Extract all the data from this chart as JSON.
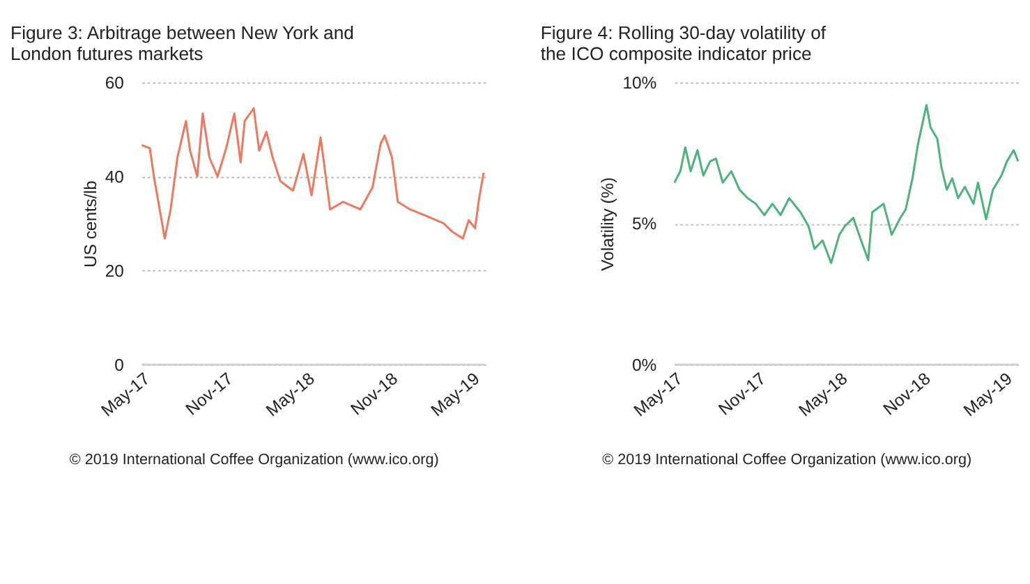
{
  "chart_data": [
    {
      "type": "line",
      "title": "Figure 3:    Arbitrage between New York and London futures markets",
      "ylabel": "US cents/lb",
      "annotations": [
        "© 2019 International Coffee Organization (www.ico.org)"
      ],
      "x": [
        "2017-05-01",
        "2017-05-19",
        "2017-05-28",
        "2017-06-21",
        "2017-07-04",
        "2017-07-19",
        "2017-08-07",
        "2017-08-16",
        "2017-09-01",
        "2017-09-13",
        "2017-09-28",
        "2017-10-16",
        "2017-11-04",
        "2017-11-22",
        "2017-12-06",
        "2017-12-15",
        "2018-01-04",
        "2018-01-16",
        "2018-02-01",
        "2018-02-15",
        "2018-03-04",
        "2018-04-01",
        "2018-04-24",
        "2018-05-12",
        "2018-06-01",
        "2018-06-22",
        "2018-07-21",
        "2018-08-28",
        "2018-09-24",
        "2018-10-12",
        "2018-10-21",
        "2018-11-06",
        "2018-11-19",
        "2018-12-16",
        "2019-01-24",
        "2019-03-01",
        "2019-03-19",
        "2019-04-12",
        "2019-04-25",
        "2019-05-09",
        "2019-05-18",
        "2019-05-28"
      ],
      "series": [
        {
          "color": "#f07860",
          "values": [
            46.7,
            46,
            40,
            26.8,
            33,
            44,
            51.8,
            45.5,
            40,
            53.4,
            44,
            40,
            46,
            53.4,
            43,
            51.8,
            54.5,
            45.5,
            49.5,
            44,
            39,
            37,
            44.8,
            36,
            48.3,
            33,
            34.6,
            33,
            37.7,
            47,
            48.7,
            44,
            34.6,
            33,
            31.5,
            30,
            28.3,
            26.8,
            30.7,
            29,
            35.4,
            40.8
          ]
        }
      ],
      "xlim": [
        "2017-05-01",
        "2019-06-01"
      ],
      "xticks": [
        {
          "value": "2017-05-01",
          "label": "May-17"
        },
        {
          "value": "2017-11-01",
          "label": "Nov-17"
        },
        {
          "value": "2018-05-01",
          "label": "May-18"
        },
        {
          "value": "2018-11-01",
          "label": "Nov-18"
        },
        {
          "value": "2019-05-01",
          "label": "May-19"
        }
      ],
      "ylim": [
        0,
        60
      ],
      "yticks": [
        0,
        20,
        40,
        60
      ],
      "grid": "y",
      "marker": "none",
      "line_style": "solid"
    },
    {
      "type": "line",
      "title": "Figure 4:    Rolling 30-day volatility of the ICO composite indicator price",
      "ylabel": "Volatility (%)",
      "annotations": [
        "© 2019 International Coffee Organization (www.ico.org)"
      ],
      "x": [
        "2017-05-01",
        "2017-05-14",
        "2017-05-25",
        "2017-06-06",
        "2017-06-21",
        "2017-07-04",
        "2017-07-19",
        "2017-08-01",
        "2017-08-16",
        "2017-09-04",
        "2017-09-22",
        "2017-10-10",
        "2017-10-28",
        "2017-11-16",
        "2017-12-04",
        "2017-12-22",
        "2018-01-10",
        "2018-02-04",
        "2018-02-22",
        "2018-03-07",
        "2018-03-25",
        "2018-04-13",
        "2018-05-01",
        "2018-05-13",
        "2018-06-01",
        "2018-06-16",
        "2018-07-04",
        "2018-07-13",
        "2018-08-07",
        "2018-08-25",
        "2018-09-13",
        "2018-09-25",
        "2018-10-10",
        "2018-10-22",
        "2018-11-10",
        "2018-11-19",
        "2018-12-04",
        "2018-12-13",
        "2018-12-25",
        "2019-01-06",
        "2019-01-19",
        "2019-02-03",
        "2019-02-22",
        "2019-03-04",
        "2019-03-22",
        "2019-04-06",
        "2019-04-25",
        "2019-05-07",
        "2019-05-22",
        "2019-06-01"
      ],
      "series": [
        {
          "color": "#4db37e",
          "values": [
            6.45,
            6.85,
            7.7,
            6.85,
            7.6,
            6.7,
            7.2,
            7.3,
            6.45,
            6.85,
            6.2,
            5.9,
            5.7,
            5.3,
            5.7,
            5.3,
            5.9,
            5.4,
            4.9,
            4.1,
            4.4,
            3.6,
            4.6,
            4.9,
            5.2,
            4.5,
            3.7,
            5.4,
            5.7,
            4.6,
            5.2,
            5.5,
            6.6,
            7.8,
            9.2,
            8.4,
            8.0,
            7.0,
            6.2,
            6.6,
            5.9,
            6.3,
            5.7,
            6.45,
            5.15,
            6.2,
            6.7,
            7.2,
            7.6,
            7.2
          ]
        }
      ],
      "xlim": [
        "2017-05-01",
        "2019-06-01"
      ],
      "xticks": [
        {
          "value": "2017-05-01",
          "label": "May-17"
        },
        {
          "value": "2017-11-01",
          "label": "Nov-17"
        },
        {
          "value": "2018-05-01",
          "label": "May-18"
        },
        {
          "value": "2018-11-01",
          "label": "Nov-18"
        },
        {
          "value": "2019-05-01",
          "label": "May-19"
        }
      ],
      "ylim": [
        0,
        10
      ],
      "yticks": [
        {
          "value": 0,
          "label": "0%"
        },
        {
          "value": 5,
          "label": "5%"
        },
        {
          "value": 10,
          "label": "10%"
        }
      ],
      "grid": "y",
      "marker": "none",
      "line_style": "solid"
    }
  ]
}
